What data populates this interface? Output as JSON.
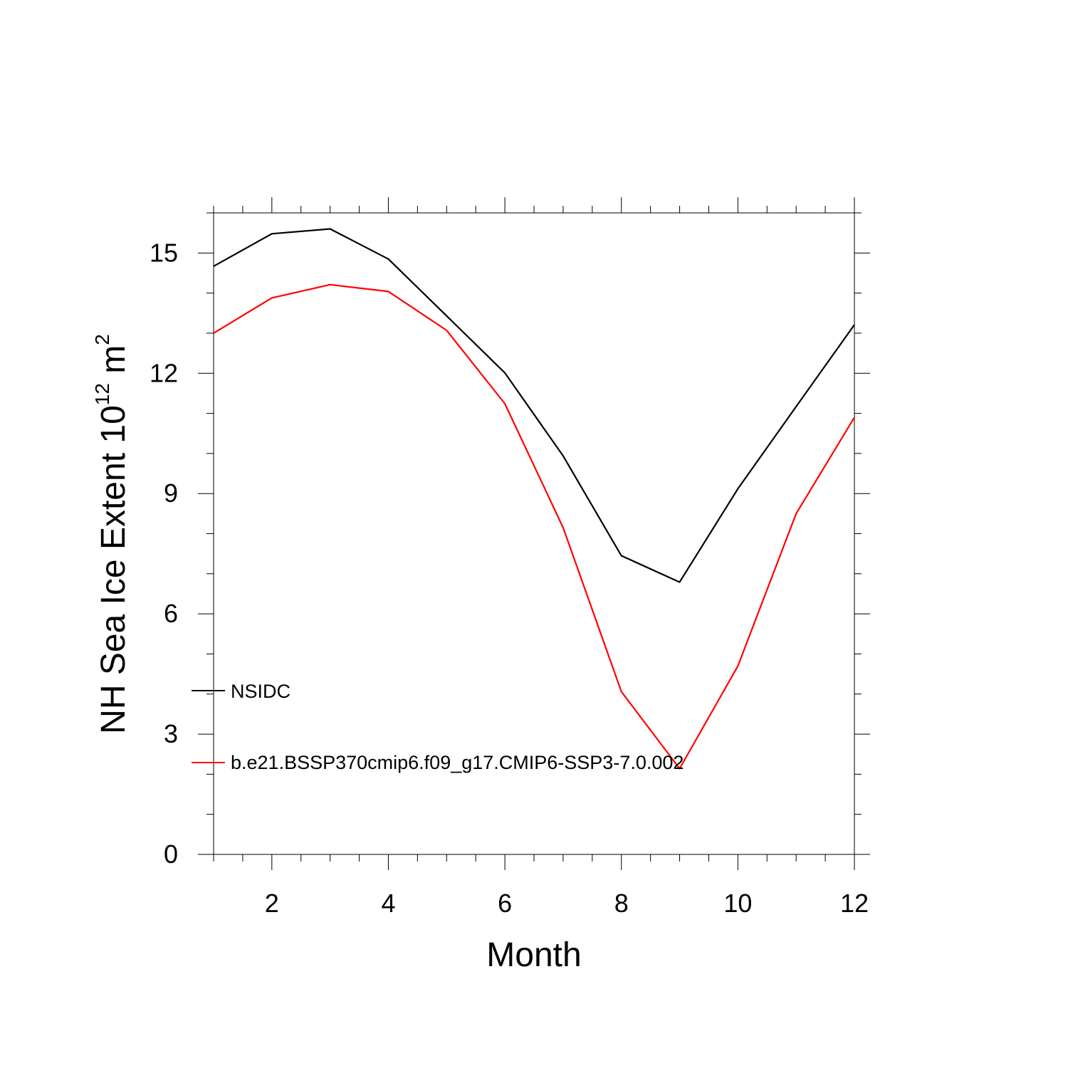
{
  "chart_data": {
    "type": "line",
    "title": "",
    "xlabel": "Month",
    "ylabel_main": "NH Sea Ice Extent 10",
    "ylabel_exp": "12",
    "ylabel_unit": " m",
    "ylabel_unit_exp": "2",
    "xlim": [
      1,
      12
    ],
    "ylim": [
      0,
      16
    ],
    "x_ticks": [
      2,
      4,
      6,
      8,
      10,
      12
    ],
    "x_tick_labels": [
      "2",
      "4",
      "6",
      "8",
      "10",
      "12"
    ],
    "y_ticks": [
      0,
      3,
      6,
      9,
      12,
      15
    ],
    "y_tick_labels": [
      "0",
      "3",
      "6",
      "9",
      "12",
      "15"
    ],
    "x": [
      1,
      2,
      3,
      4,
      5,
      6,
      7,
      8,
      9,
      10,
      11,
      12
    ],
    "series": [
      {
        "name": "NSIDC",
        "color": "#000000",
        "values": [
          14.67,
          15.48,
          15.6,
          14.85,
          13.43,
          12.01,
          9.94,
          7.45,
          6.79,
          9.12,
          11.17,
          13.21
        ]
      },
      {
        "name": "b.e21.BSSP370cmip6.f09_g17.CMIP6-SSP3-7.0.002",
        "color": "#ff0000",
        "values": [
          13.0,
          13.88,
          14.21,
          14.04,
          13.07,
          11.24,
          8.15,
          4.06,
          2.14,
          4.7,
          8.5,
          10.9
        ]
      }
    ],
    "legend_position": "lower-left"
  }
}
